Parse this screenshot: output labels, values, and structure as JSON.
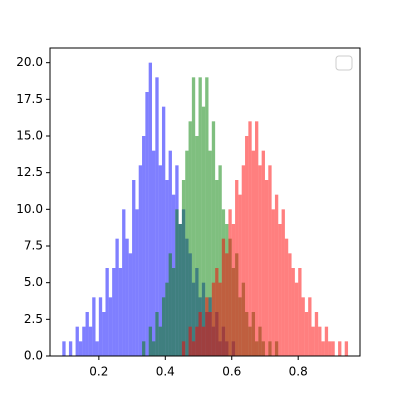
{
  "chart_data": {
    "type": "histogram",
    "xlim": [
      0.053,
      0.986
    ],
    "ylim": [
      0,
      21
    ],
    "xticks": [
      0.2,
      0.4,
      0.6,
      0.8
    ],
    "yticks": [
      {
        "value": 0,
        "label": "0.0"
      },
      2.5,
      {
        "value": 5,
        "label": "5.0"
      },
      7.5,
      {
        "value": 10,
        "label": "10.0"
      },
      12.5,
      {
        "value": 15,
        "label": "15.0"
      },
      17.5,
      {
        "value": 20,
        "label": "20.0"
      }
    ],
    "legend": "upper right",
    "alpha": 0.5,
    "series": [
      {
        "color": "#0000ff",
        "bins": [
          0.09,
          0.1,
          0.11,
          0.12,
          0.13,
          0.14,
          0.15,
          0.16,
          0.17,
          0.18,
          0.19,
          0.2,
          0.21,
          0.22,
          0.23,
          0.24,
          0.25,
          0.26,
          0.27,
          0.28,
          0.29,
          0.3,
          0.31,
          0.32,
          0.33,
          0.34,
          0.35,
          0.36,
          0.37,
          0.38,
          0.39,
          0.4,
          0.41,
          0.42,
          0.43,
          0.44,
          0.45,
          0.46,
          0.47,
          0.48,
          0.49,
          0.5,
          0.51,
          0.52,
          0.53,
          0.54,
          0.55,
          0.56,
          0.57,
          0.58,
          0.59,
          0.6,
          0.61
        ],
        "values": [
          1,
          0,
          1,
          0,
          2,
          1,
          2,
          3,
          2,
          4,
          1,
          4,
          3,
          6,
          4,
          6,
          8,
          6,
          10,
          8,
          7,
          12,
          10,
          13,
          15,
          18,
          20,
          14,
          19,
          13,
          17,
          12,
          14,
          11,
          13,
          9,
          10,
          8,
          7,
          5,
          6,
          4,
          5,
          3,
          4,
          2,
          3,
          1,
          2,
          1,
          0,
          1
        ]
      },
      {
        "color": "#008000",
        "bins": [
          0.33,
          0.34,
          0.35,
          0.36,
          0.37,
          0.38,
          0.39,
          0.4,
          0.41,
          0.42,
          0.43,
          0.44,
          0.45,
          0.46,
          0.47,
          0.48,
          0.49,
          0.5,
          0.51,
          0.52,
          0.53,
          0.54,
          0.55,
          0.56,
          0.57,
          0.58,
          0.59,
          0.6,
          0.61,
          0.62,
          0.63,
          0.64,
          0.65,
          0.66,
          0.67,
          0.68,
          0.69,
          0.7,
          0.71,
          0.72,
          0.73,
          0.74,
          0.75
        ],
        "values": [
          1,
          0,
          2,
          1,
          3,
          2,
          4,
          5,
          7,
          6,
          10,
          9,
          12,
          14,
          16,
          19,
          15,
          19,
          17,
          19,
          14,
          16,
          12,
          13,
          10,
          9,
          8,
          6,
          7,
          4,
          5,
          3,
          2,
          3,
          1,
          2,
          1,
          0,
          1,
          0,
          1,
          0
        ]
      },
      {
        "color": "#ff0000",
        "bins": [
          0.45,
          0.46,
          0.47,
          0.48,
          0.49,
          0.5,
          0.51,
          0.52,
          0.53,
          0.54,
          0.55,
          0.56,
          0.57,
          0.58,
          0.59,
          0.6,
          0.61,
          0.62,
          0.63,
          0.64,
          0.65,
          0.66,
          0.67,
          0.68,
          0.69,
          0.7,
          0.71,
          0.72,
          0.73,
          0.74,
          0.75,
          0.76,
          0.77,
          0.78,
          0.79,
          0.8,
          0.81,
          0.82,
          0.83,
          0.84,
          0.85,
          0.86,
          0.87,
          0.88,
          0.89,
          0.9,
          0.91,
          0.92,
          0.93,
          0.94,
          0.95
        ],
        "values": [
          1,
          0,
          2,
          1,
          2,
          3,
          2,
          4,
          3,
          5,
          6,
          5,
          8,
          7,
          10,
          9,
          12,
          11,
          13,
          15,
          16,
          14,
          16,
          13,
          14,
          12,
          13,
          10,
          11,
          9,
          10,
          8,
          7,
          6,
          5,
          6,
          4,
          3,
          4,
          2,
          3,
          2,
          1,
          2,
          1,
          1,
          0,
          1,
          0,
          1
        ]
      }
    ]
  }
}
